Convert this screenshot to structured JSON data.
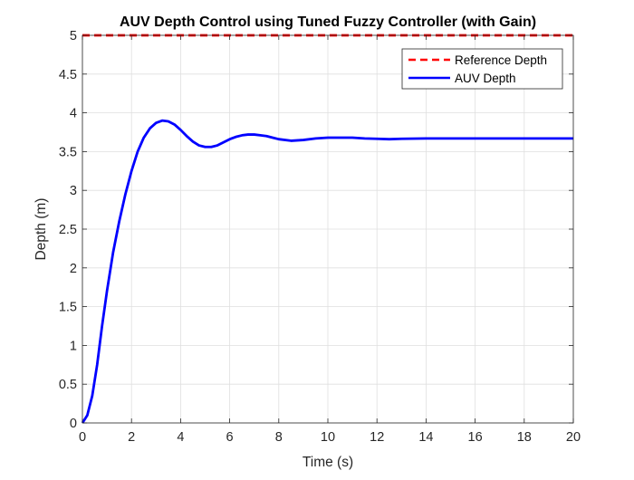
{
  "chart_data": {
    "type": "line",
    "title": "AUV Depth Control using Tuned Fuzzy Controller (with Gain)",
    "xlabel": "Time (s)",
    "ylabel": "Depth (m)",
    "xlim": [
      0,
      20
    ],
    "ylim": [
      0,
      5
    ],
    "x_ticks": [
      "0",
      "2",
      "4",
      "6",
      "8",
      "10",
      "12",
      "14",
      "16",
      "18",
      "20"
    ],
    "y_ticks": [
      "0",
      "0.5",
      "1",
      "1.5",
      "2",
      "2.5",
      "3",
      "3.5",
      "4",
      "4.5",
      "5"
    ],
    "grid": true,
    "legend_position": "top-right",
    "series": [
      {
        "name": "Reference Depth",
        "color": "#ff0000",
        "style": "dashed",
        "x": [
          0,
          20
        ],
        "y": [
          5,
          5
        ]
      },
      {
        "name": "AUV Depth",
        "color": "#0000ff",
        "style": "solid",
        "x": [
          0,
          0.2,
          0.4,
          0.6,
          0.8,
          1.0,
          1.25,
          1.5,
          1.75,
          2.0,
          2.25,
          2.5,
          2.75,
          3.0,
          3.25,
          3.5,
          3.75,
          4.0,
          4.25,
          4.5,
          4.75,
          5.0,
          5.25,
          5.5,
          5.75,
          6.0,
          6.25,
          6.5,
          6.75,
          7.0,
          7.25,
          7.5,
          7.75,
          8.0,
          8.5,
          9.0,
          9.5,
          10.0,
          10.5,
          11.0,
          11.5,
          12.0,
          12.5,
          13.0,
          14.0,
          15.0,
          16.0,
          17.0,
          18.0,
          19.0,
          20.0
        ],
        "y": [
          0,
          0.1,
          0.35,
          0.75,
          1.25,
          1.7,
          2.2,
          2.6,
          2.95,
          3.25,
          3.5,
          3.68,
          3.8,
          3.87,
          3.9,
          3.89,
          3.85,
          3.78,
          3.7,
          3.63,
          3.58,
          3.56,
          3.56,
          3.58,
          3.62,
          3.66,
          3.69,
          3.71,
          3.72,
          3.72,
          3.71,
          3.7,
          3.68,
          3.66,
          3.64,
          3.65,
          3.67,
          3.68,
          3.68,
          3.68,
          3.67,
          3.665,
          3.66,
          3.665,
          3.67,
          3.67,
          3.67,
          3.67,
          3.67,
          3.67,
          3.67
        ]
      }
    ]
  }
}
